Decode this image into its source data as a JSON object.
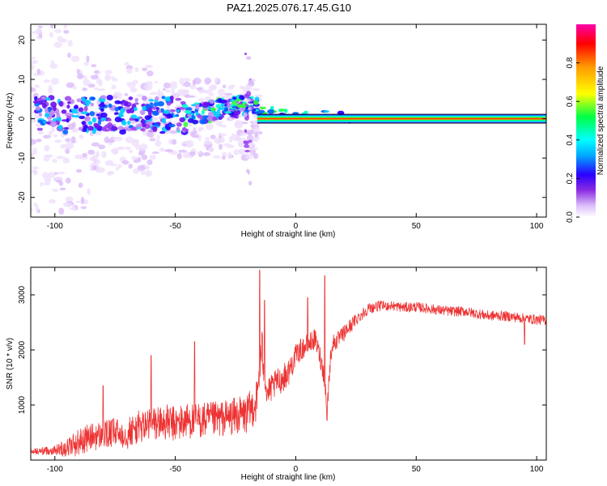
{
  "title": "PAZ1.2025.076.17.45.G10",
  "chart_data": [
    {
      "type": "heatmap",
      "title": "PAZ1.2025.076.17.45.G10",
      "xlabel": "Height of straight line (km)",
      "ylabel": "Frequency (Hz)",
      "xlim": [
        -110,
        104
      ],
      "ylim": [
        -25,
        24
      ],
      "xticks": [
        -100,
        -50,
        0,
        50,
        100
      ],
      "yticks": [
        -20,
        -10,
        0,
        10,
        20
      ],
      "colorbar": {
        "label": "Normalized spectral amplitude",
        "range": [
          0,
          1
        ],
        "ticks": [
          "0.0",
          "0.2",
          "0.4",
          "0.6",
          "0.8"
        ]
      },
      "grid": false,
      "tone_frequency_hz": 0,
      "tone_start_km": -16
    },
    {
      "type": "line",
      "xlabel": "Height of straight line (km)",
      "ylabel": "SNR (10 * v/v)",
      "xlim": [
        -110,
        104
      ],
      "ylim": [
        0,
        3500
      ],
      "xticks": [
        -100,
        -50,
        0,
        50,
        100
      ],
      "yticks": [
        1000,
        2000,
        3000
      ],
      "grid": false,
      "series": [
        {
          "color": "#ee3333",
          "x": [
            -110,
            -100,
            -95,
            -90,
            -85,
            -80,
            -75,
            -70,
            -65,
            -60,
            -55,
            -50,
            -45,
            -40,
            -35,
            -30,
            -25,
            -20,
            -16,
            -15,
            -14,
            -12,
            -10,
            -8,
            -5,
            -3,
            0,
            2,
            5,
            8,
            10,
            12,
            13,
            14,
            15,
            18,
            20,
            25,
            30,
            35,
            40,
            45,
            50,
            55,
            60,
            65,
            70,
            75,
            80,
            85,
            90,
            95,
            100,
            104
          ],
          "y": [
            150,
            180,
            230,
            330,
            420,
            450,
            500,
            480,
            600,
            650,
            690,
            650,
            720,
            720,
            720,
            760,
            800,
            830,
            1100,
            1700,
            2000,
            1200,
            1300,
            1400,
            1500,
            1600,
            1900,
            2000,
            2100,
            2200,
            1900,
            1500,
            900,
            1600,
            2100,
            2200,
            2300,
            2550,
            2750,
            2800,
            2800,
            2770,
            2780,
            2750,
            2720,
            2700,
            2700,
            2660,
            2620,
            2620,
            2600,
            2570,
            2550,
            2540
          ],
          "noise_amplitude": [
            60,
            80,
            180,
            250,
            250,
            260,
            270,
            290,
            300,
            320,
            330,
            330,
            330,
            330,
            330,
            330,
            340,
            360,
            400,
            400,
            400,
            250,
            250,
            250,
            250,
            250,
            200,
            200,
            200,
            180,
            200,
            200,
            200,
            200,
            180,
            150,
            150,
            120,
            100,
            90,
            90,
            90,
            90,
            90,
            90,
            90,
            90,
            90,
            90,
            90,
            90,
            90,
            90,
            90
          ],
          "spikes": [
            {
              "x": -15,
              "y": 3450
            },
            {
              "x": -13,
              "y": 2900
            },
            {
              "x": -42,
              "y": 2150
            },
            {
              "x": -60,
              "y": 1900
            },
            {
              "x": -80,
              "y": 1350
            },
            {
              "x": 12,
              "y": 3350
            },
            {
              "x": 13,
              "y": 720
            },
            {
              "x": 5,
              "y": 2950
            },
            {
              "x": 95,
              "y": 2100
            }
          ]
        }
      ]
    }
  ]
}
